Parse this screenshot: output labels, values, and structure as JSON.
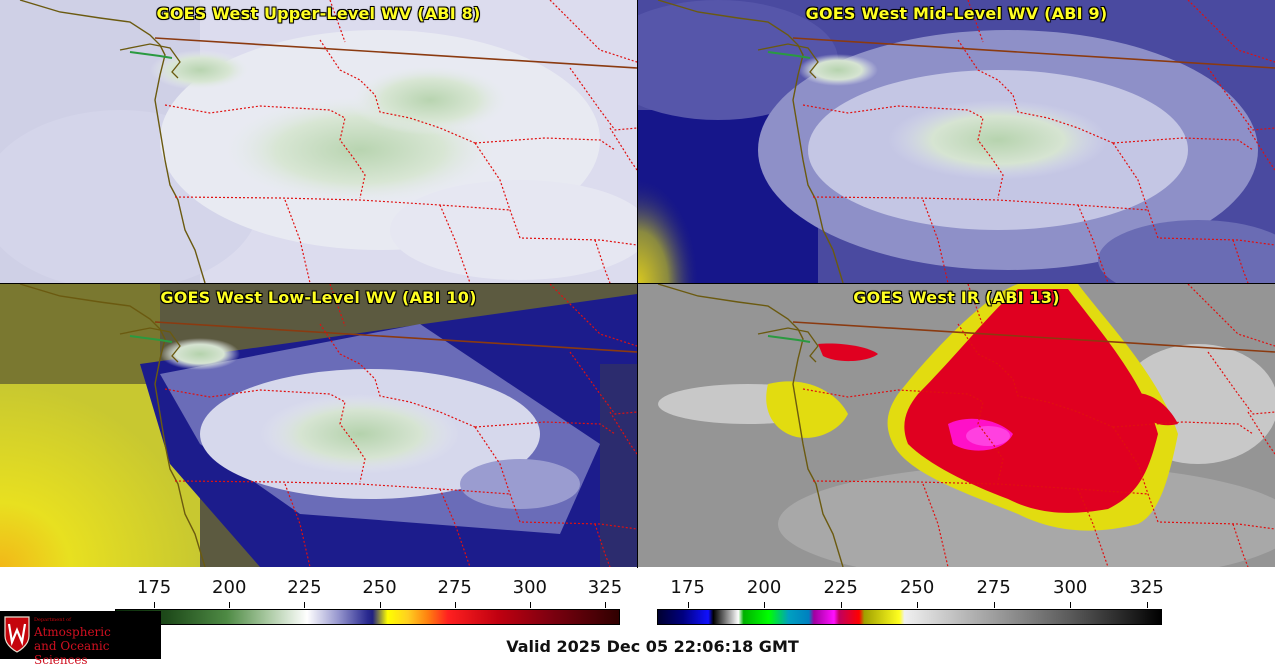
{
  "panels": [
    {
      "title": "GOES West Upper-Level WV (ABI 8)"
    },
    {
      "title": "GOES West Mid-Level WV (ABI 9)"
    },
    {
      "title": "GOES West Low-Level WV (ABI 10)"
    },
    {
      "title": "GOES West IR (ABI 13)"
    }
  ],
  "colorbar_wv": {
    "ticks": [
      "175",
      "200",
      "225",
      "250",
      "275",
      "300",
      "325"
    ],
    "range": [
      162,
      330
    ]
  },
  "colorbar_ir": {
    "ticks": [
      "175",
      "200",
      "225",
      "250",
      "275",
      "300",
      "325"
    ],
    "range": [
      165,
      330
    ]
  },
  "logo": {
    "dept": "Department of",
    "line1": "Atmospheric",
    "line2": "and Oceanic Sciences"
  },
  "valid_time": "Valid 2025 Dec 05 22:06:18 GMT",
  "colors": {
    "title_text": "#ffff22",
    "state_border": "#e01010",
    "country_border": "#8b3a10",
    "coastline": "#6b5a10"
  }
}
